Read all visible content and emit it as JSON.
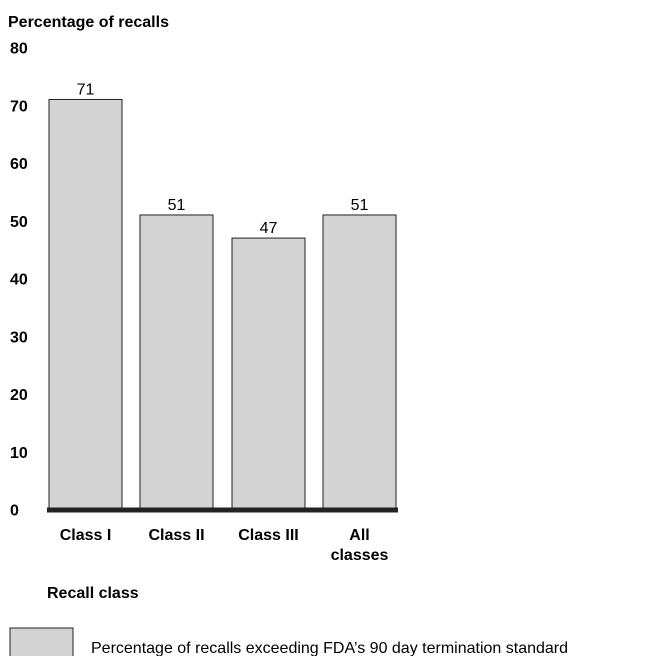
{
  "chart_data": {
    "type": "bar",
    "ylabel": "Percentage of recalls",
    "xlabel": "Recall class",
    "ylim": [
      0,
      80
    ],
    "yticks": [
      0,
      10,
      20,
      30,
      40,
      50,
      60,
      70,
      80
    ],
    "categories": [
      [
        "Class I"
      ],
      [
        "Class II"
      ],
      [
        "Class III"
      ],
      [
        "All",
        "classes"
      ]
    ],
    "series": [
      {
        "name": "Percentage of recalls exceeding FDA’s 90 day termination standard",
        "values": [
          71,
          51,
          47,
          51
        ],
        "color": "#d3d3d3"
      }
    ],
    "data_labels": [
      "71",
      "51",
      "47",
      "51"
    ],
    "grid": false,
    "legend": "bottom"
  }
}
